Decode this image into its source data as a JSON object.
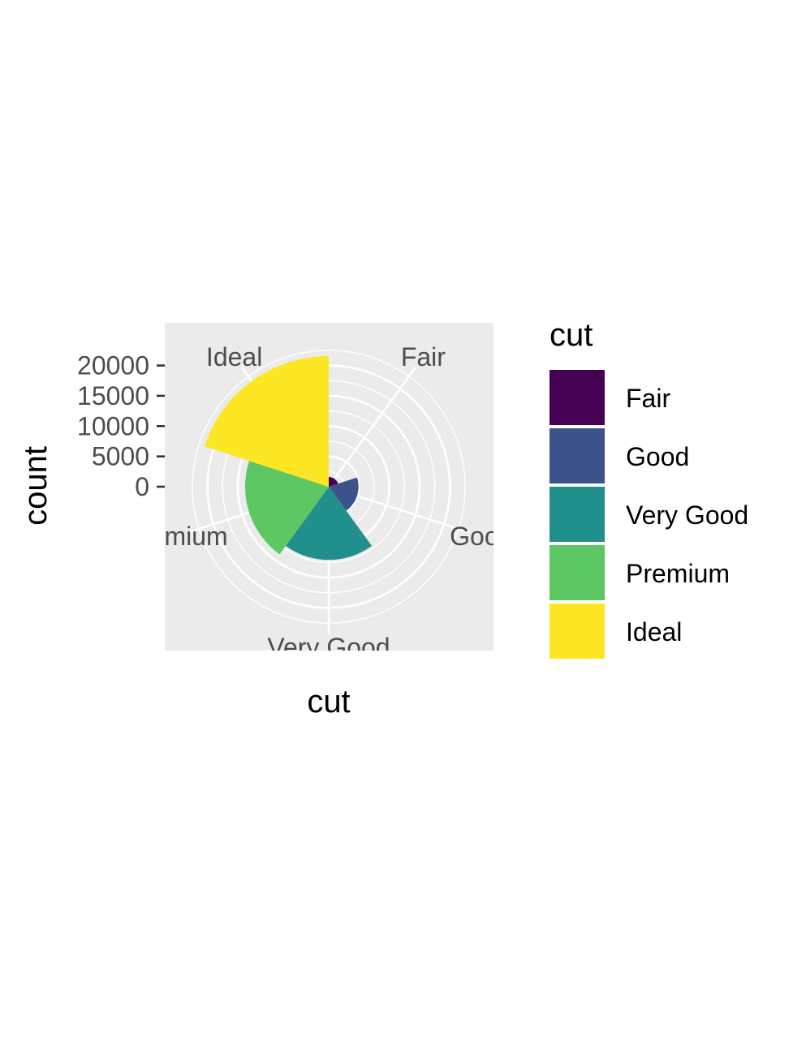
{
  "chart_data": {
    "type": "bar",
    "coord": "polar",
    "categories": [
      "Fair",
      "Good",
      "Very Good",
      "Premium",
      "Ideal"
    ],
    "values": [
      1610,
      4906,
      12082,
      13791,
      21551
    ],
    "colors": [
      "#440154",
      "#3B528B",
      "#21908C",
      "#5DC863",
      "#FDE725"
    ],
    "xlabel": "cut",
    "ylabel": "count",
    "yticks": [
      0,
      5000,
      10000,
      15000,
      20000
    ],
    "ytick_labels": [
      "0",
      "5000",
      "10000",
      "15000",
      "20000"
    ],
    "ylim": [
      0,
      21551
    ],
    "panel_background": "#EBEBEB",
    "grid_color": "#FFFFFF",
    "legend": {
      "title": "cut",
      "position": "right",
      "entries": [
        "Fair",
        "Good",
        "Very Good",
        "Premium",
        "Ideal"
      ]
    }
  }
}
